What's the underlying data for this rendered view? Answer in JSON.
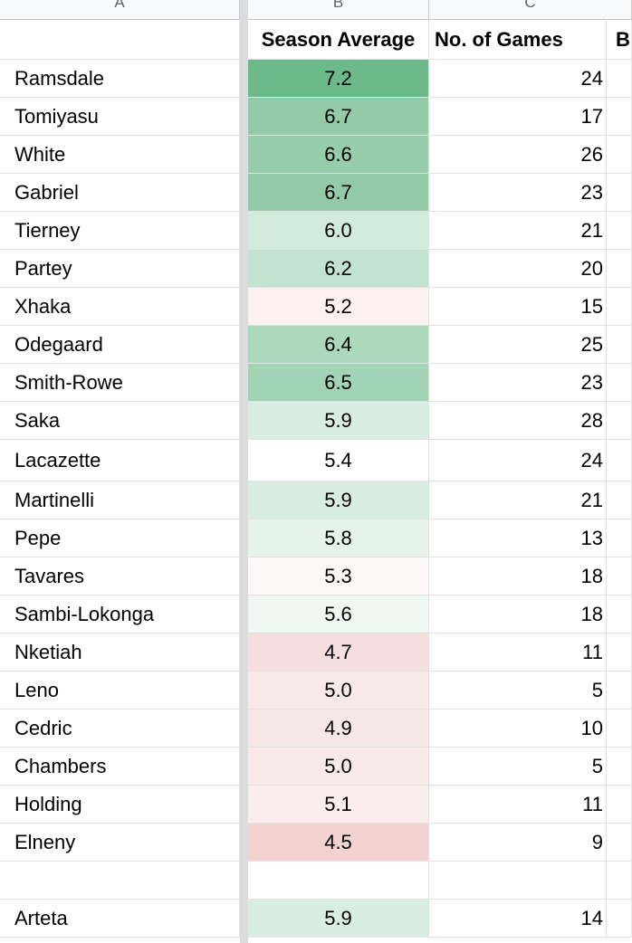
{
  "columns": {
    "a": "A",
    "b": "B",
    "c": "C"
  },
  "header": {
    "avg": "Season Average",
    "games": "No. of Games",
    "d": "B"
  },
  "colors": {
    "strong_green": "#6cb98a",
    "mid_green": "#93cba8",
    "light_green": "#d3ebdd",
    "pale_green": "#e7f4ec",
    "pale_red": "#fcf0f0",
    "light_red": "#f6dedd",
    "red": "#f2d3d2"
  },
  "rows": [
    {
      "name": "Ramsdale",
      "avg": "7.2",
      "games": "24",
      "color": "#6cb98a"
    },
    {
      "name": "Tomiyasu",
      "avg": "6.7",
      "games": "17",
      "color": "#93cba8"
    },
    {
      "name": "White",
      "avg": "6.6",
      "games": "26",
      "color": "#97cdaa"
    },
    {
      "name": "Gabriel",
      "avg": "6.7",
      "games": "23",
      "color": "#93cba8"
    },
    {
      "name": "Tierney",
      "avg": "6.0",
      "games": "21",
      "color": "#d3ebdd"
    },
    {
      "name": "Partey",
      "avg": "6.2",
      "games": "20",
      "color": "#c2e3cf"
    },
    {
      "name": "Xhaka",
      "avg": "5.2",
      "games": "15",
      "color": "#fcf0f0"
    },
    {
      "name": "Odegaard",
      "avg": "6.4",
      "games": "25",
      "color": "#acd8bc"
    },
    {
      "name": "Smith-Rowe",
      "avg": "6.5",
      "games": "23",
      "color": "#a3d3b5"
    },
    {
      "name": "Saka",
      "avg": "5.9",
      "games": "28",
      "color": "#d9eee2"
    },
    {
      "name": "Lacazette",
      "avg": "5.4",
      "games": "24",
      "color": "#ffffff"
    },
    {
      "name": "Martinelli",
      "avg": "5.9",
      "games": "21",
      "color": "#d9eee2"
    },
    {
      "name": "Pepe",
      "avg": "5.8",
      "games": "13",
      "color": "#e6f3eb"
    },
    {
      "name": "Tavares",
      "avg": "5.3",
      "games": "18",
      "color": "#fdf7f7"
    },
    {
      "name": "Sambi-Lokonga",
      "avg": "5.6",
      "games": "18",
      "color": "#eff7f2"
    },
    {
      "name": "Nketiah",
      "avg": "4.7",
      "games": "11",
      "color": "#f5e0df"
    },
    {
      "name": "Leno",
      "avg": "5.0",
      "games": "5",
      "color": "#f8e8e8"
    },
    {
      "name": "Cedric",
      "avg": "4.9",
      "games": "10",
      "color": "#f7e6e6"
    },
    {
      "name": "Chambers",
      "avg": "5.0",
      "games": "5",
      "color": "#f8e8e8"
    },
    {
      "name": "Holding",
      "avg": "5.1",
      "games": "11",
      "color": "#faeded"
    },
    {
      "name": "Elneny",
      "avg": "4.5",
      "games": "9",
      "color": "#f2d3d2"
    },
    {
      "name": "",
      "avg": "",
      "games": "",
      "color": "#ffffff"
    },
    {
      "name": "Arteta",
      "avg": "5.9",
      "games": "14",
      "color": "#d9eee2"
    }
  ]
}
